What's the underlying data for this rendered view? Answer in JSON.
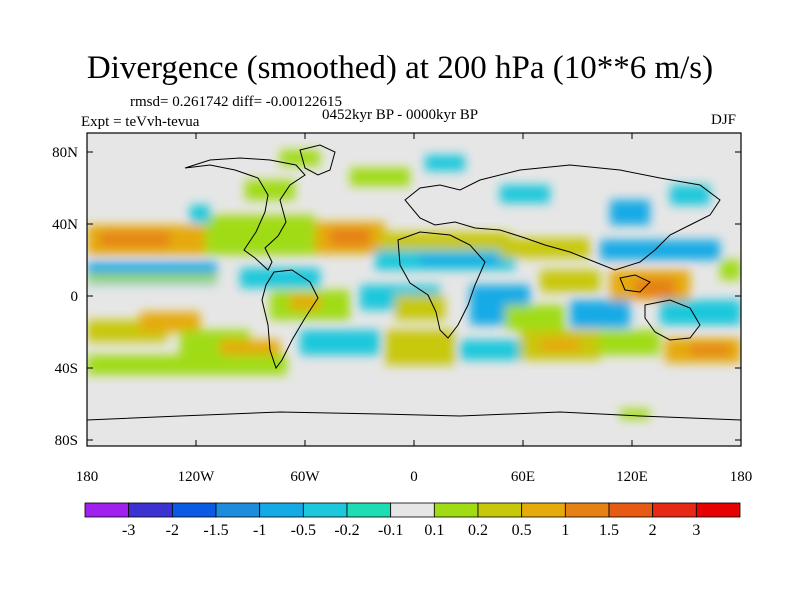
{
  "title": "Divergence (smoothed) at 200 hPa (10**6 m/s)",
  "stats_line": "rmsd= 0.261742 diff= -0.00122615",
  "experiment": "Expt = teVvh-tevua",
  "period": "0452kyr BP - 0000kyr BP",
  "season": "DJF",
  "map": {
    "lat_ticks": [
      "80N",
      "40N",
      "0",
      "40S",
      "80S"
    ],
    "lon_ticks": [
      "180",
      "120W",
      "60W",
      "0",
      "60E",
      "120E",
      "180"
    ],
    "background_color": "#e6e6e6"
  },
  "colorbar": {
    "labels": [
      "-3",
      "-2",
      "-1.5",
      "-1",
      "-0.5",
      "-0.2",
      "-0.1",
      "0.1",
      "0.2",
      "0.5",
      "1",
      "1.5",
      "2",
      "3"
    ],
    "colors": [
      "#a020f0",
      "#3c32d2",
      "#0a5ae6",
      "#1e8cdc",
      "#14aae6",
      "#1ec8dc",
      "#1edcb4",
      "#e6e6e6",
      "#a0dc14",
      "#c8c80a",
      "#e6aa0a",
      "#e68214",
      "#e65a14",
      "#e62814",
      "#e60000"
    ]
  }
}
